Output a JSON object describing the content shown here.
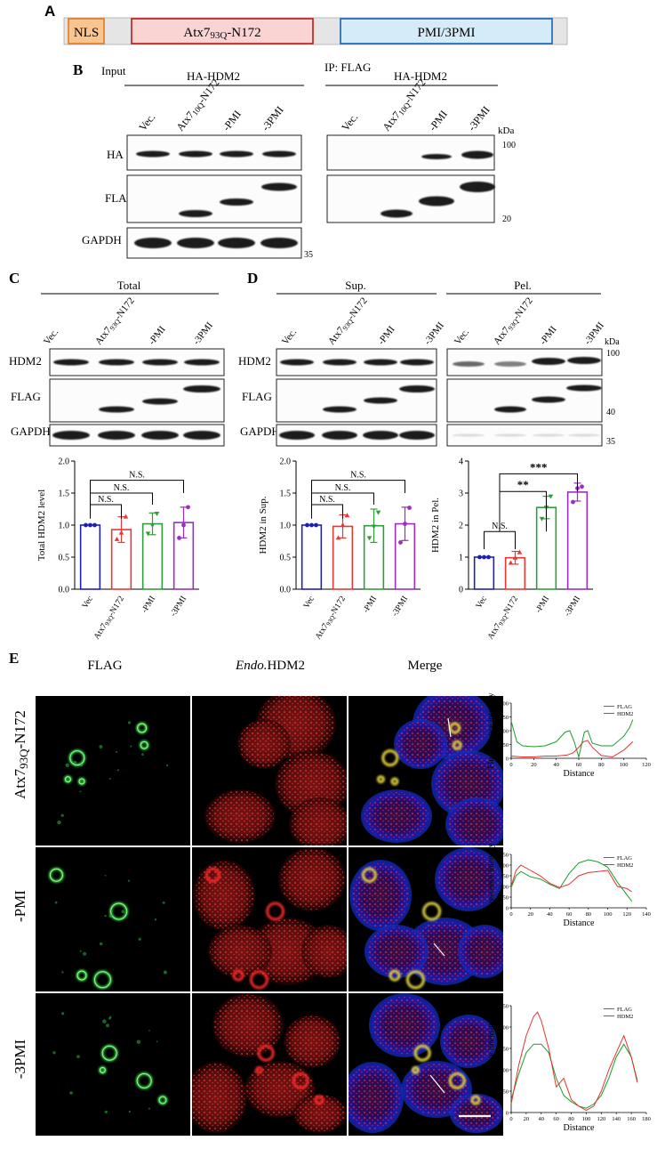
{
  "panels": {
    "A": "A",
    "B": "B",
    "C": "C",
    "D": "D",
    "E": "E"
  },
  "panel_a": {
    "segments": [
      "NLS",
      "Atx7",
      "93Q",
      "-N172",
      "PMI/3PMI"
    ],
    "colors": {
      "nls": "#f8c590",
      "atx": "#fad3d3",
      "pmi": "#d5ebf7",
      "bar": "#e5e5e5"
    }
  },
  "panel_b": {
    "input_label": "Input",
    "ip_label": "IP: FLAG",
    "group_label": "HA-HDM2",
    "lanes": [
      "Vec.",
      "Atx7",
      "-PMI",
      "-3PMI"
    ],
    "atx_sub": "10Q",
    "atx_suffix": "-N172",
    "rows": [
      "HA",
      "FLAG",
      "GAPDH"
    ],
    "kda": "kDa",
    "markers": [
      "100",
      "20",
      "35"
    ]
  },
  "panel_c": {
    "header": "Total",
    "lanes": [
      "Vec.",
      "Atx7",
      "-PMI",
      "-3PMI"
    ],
    "atx_sub": "93Q",
    "atx_suffix": "-N172",
    "rows": [
      "HDM2",
      "FLAG",
      "GAPDH"
    ]
  },
  "panel_d": {
    "sup_header": "Sup.",
    "pel_header": "Pel.",
    "lanes": [
      "Vec.",
      "Atx7",
      "-PMI",
      "-3PMI"
    ],
    "atx_sub": "93Q",
    "atx_suffix": "-N172",
    "rows": [
      "HDM2",
      "FLAG",
      "GAPDH"
    ],
    "kda": "kDa",
    "markers": [
      "100",
      "40",
      "35"
    ]
  },
  "chart_data": [
    {
      "type": "bar",
      "ylabel": "Total  HDM2 level",
      "categories": [
        "Vec",
        "Atx7",
        "-PMI",
        "-3PMI"
      ],
      "cat_sub": "93Q",
      "cat_suffix": "-N172",
      "values": [
        1.0,
        0.93,
        1.02,
        1.04
      ],
      "errors": [
        0.0,
        0.2,
        0.17,
        0.24
      ],
      "points": [
        [
          1.0,
          1.0,
          1.0
        ],
        [
          0.78,
          0.88,
          1.13
        ],
        [
          0.87,
          1.0,
          1.18
        ],
        [
          0.8,
          1.0,
          1.28
        ]
      ],
      "ylim": [
        0,
        2.0
      ],
      "yticks": [
        "0.0",
        "0.5",
        "1.0",
        "1.5",
        "2.0"
      ],
      "colors": [
        "#1f1fb4",
        "#e53935",
        "#2e9e3a",
        "#9b2dc0"
      ],
      "annotations": [
        "N.S.",
        "N.S.",
        "N.S."
      ]
    },
    {
      "type": "bar",
      "ylabel": "HDM2 in Sup.",
      "categories": [
        "Vec",
        "Atx7",
        "-PMI",
        "-3PMI"
      ],
      "cat_sub": "93Q",
      "cat_suffix": "-N172",
      "values": [
        1.0,
        0.98,
        0.99,
        1.02
      ],
      "errors": [
        0.0,
        0.18,
        0.26,
        0.26
      ],
      "points": [
        [
          1.0,
          1.0,
          1.0
        ],
        [
          0.8,
          1.0,
          1.15
        ],
        [
          0.8,
          0.98,
          1.2
        ],
        [
          0.73,
          1.02,
          1.27
        ]
      ],
      "ylim": [
        0,
        2.0
      ],
      "yticks": [
        "0.0",
        "0.5",
        "1.0",
        "1.5",
        "2.0"
      ],
      "colors": [
        "#1f1fb4",
        "#e53935",
        "#2e9e3a",
        "#9b2dc0"
      ],
      "annotations": [
        "N.S.",
        "N.S.",
        "N.S."
      ]
    },
    {
      "type": "bar",
      "ylabel": "HDM2 in Pel.",
      "categories": [
        "Vec",
        "Atx7",
        "-PMI",
        "-3PMI"
      ],
      "cat_sub": "93Q",
      "cat_suffix": "-N172",
      "values": [
        1.0,
        0.98,
        2.55,
        3.03
      ],
      "errors": [
        0.0,
        0.2,
        0.35,
        0.28
      ],
      "points": [
        [
          1.0,
          1.0,
          1.0
        ],
        [
          0.82,
          0.98,
          1.15
        ],
        [
          2.2,
          2.55,
          2.9
        ],
        [
          2.72,
          3.15,
          3.2
        ]
      ],
      "ylim": [
        0,
        4
      ],
      "yticks": [
        "0",
        "1",
        "2",
        "3",
        "4"
      ],
      "colors": [
        "#1f1fb4",
        "#e53935",
        "#2e9e3a",
        "#9b2dc0"
      ],
      "annotations": [
        "N.S.",
        "**",
        "***"
      ]
    },
    {
      "type": "line",
      "xlabel": "Distance",
      "ylabel": "Fluorescence intensity",
      "xlim": [
        0,
        120
      ],
      "ylim": [
        0,
        200
      ],
      "xticks": [
        "0",
        "20",
        "40",
        "60",
        "80",
        "100",
        "120"
      ],
      "yticks": [
        "0",
        "50",
        "100",
        "150",
        "200"
      ],
      "series": [
        {
          "name": "FLAG",
          "color": "#1a9e2a",
          "x": [
            0,
            5,
            10,
            20,
            30,
            40,
            48,
            52,
            56,
            60,
            62,
            65,
            68,
            72,
            80,
            90,
            100,
            105,
            108
          ],
          "y": [
            135,
            60,
            45,
            42,
            45,
            60,
            95,
            100,
            60,
            5,
            40,
            95,
            100,
            55,
            45,
            45,
            80,
            110,
            140
          ]
        },
        {
          "name": "HDM2",
          "color": "#e83030",
          "x": [
            0,
            10,
            20,
            30,
            40,
            50,
            55,
            60,
            64,
            68,
            72,
            80,
            90,
            100,
            108
          ],
          "y": [
            8,
            5,
            5,
            8,
            8,
            12,
            20,
            40,
            60,
            65,
            40,
            10,
            5,
            30,
            60
          ]
        }
      ]
    },
    {
      "type": "line",
      "xlabel": "Distance",
      "ylabel": "Fluorescence intensity",
      "xlim": [
        0,
        140
      ],
      "ylim": [
        0,
        250
      ],
      "xticks": [
        "0",
        "20",
        "40",
        "60",
        "80",
        "100",
        "120",
        "140"
      ],
      "yticks": [
        "0",
        "50",
        "100",
        "150",
        "200",
        "250"
      ],
      "series": [
        {
          "name": "FLAG",
          "color": "#1a9e2a",
          "x": [
            0,
            5,
            10,
            20,
            30,
            40,
            50,
            60,
            70,
            80,
            90,
            100,
            110,
            120,
            125
          ],
          "y": [
            95,
            150,
            170,
            145,
            135,
            110,
            90,
            160,
            210,
            225,
            215,
            190,
            120,
            60,
            30
          ]
        },
        {
          "name": "HDM2",
          "color": "#e83030",
          "x": [
            0,
            5,
            10,
            20,
            30,
            40,
            50,
            60,
            70,
            80,
            90,
            100,
            110,
            120,
            125
          ],
          "y": [
            100,
            175,
            200,
            175,
            150,
            115,
            95,
            110,
            150,
            165,
            170,
            175,
            100,
            90,
            75
          ]
        }
      ]
    },
    {
      "type": "line",
      "xlabel": "Distance",
      "ylabel": "Fluorescence intensity",
      "xlim": [
        0,
        180
      ],
      "ylim": [
        0,
        250
      ],
      "xticks": [
        "0",
        "20",
        "40",
        "60",
        "80",
        "100",
        "120",
        "140",
        "160",
        "180"
      ],
      "yticks": [
        "0",
        "50",
        "100",
        "150",
        "200",
        "250"
      ],
      "series": [
        {
          "name": "FLAG",
          "color": "#1a9e2a",
          "x": [
            0,
            10,
            20,
            30,
            40,
            50,
            60,
            70,
            80,
            90,
            100,
            110,
            120,
            130,
            140,
            150,
            160,
            168
          ],
          "y": [
            30,
            90,
            140,
            160,
            160,
            140,
            80,
            40,
            25,
            15,
            10,
            20,
            40,
            80,
            130,
            160,
            130,
            75
          ]
        },
        {
          "name": "HDM2",
          "color": "#e83030",
          "x": [
            0,
            10,
            20,
            30,
            35,
            40,
            50,
            60,
            70,
            80,
            90,
            100,
            110,
            120,
            130,
            140,
            150,
            160,
            168
          ],
          "y": [
            20,
            110,
            180,
            225,
            235,
            215,
            150,
            60,
            80,
            30,
            15,
            5,
            15,
            50,
            100,
            140,
            180,
            130,
            70
          ]
        }
      ]
    }
  ],
  "panel_e": {
    "columns": [
      "FLAG",
      "Endo.",
      "HDM2",
      "Merge"
    ],
    "rows": [
      "Atx7",
      "93Q",
      "-N172",
      "-PMI",
      "-3PMI"
    ]
  }
}
